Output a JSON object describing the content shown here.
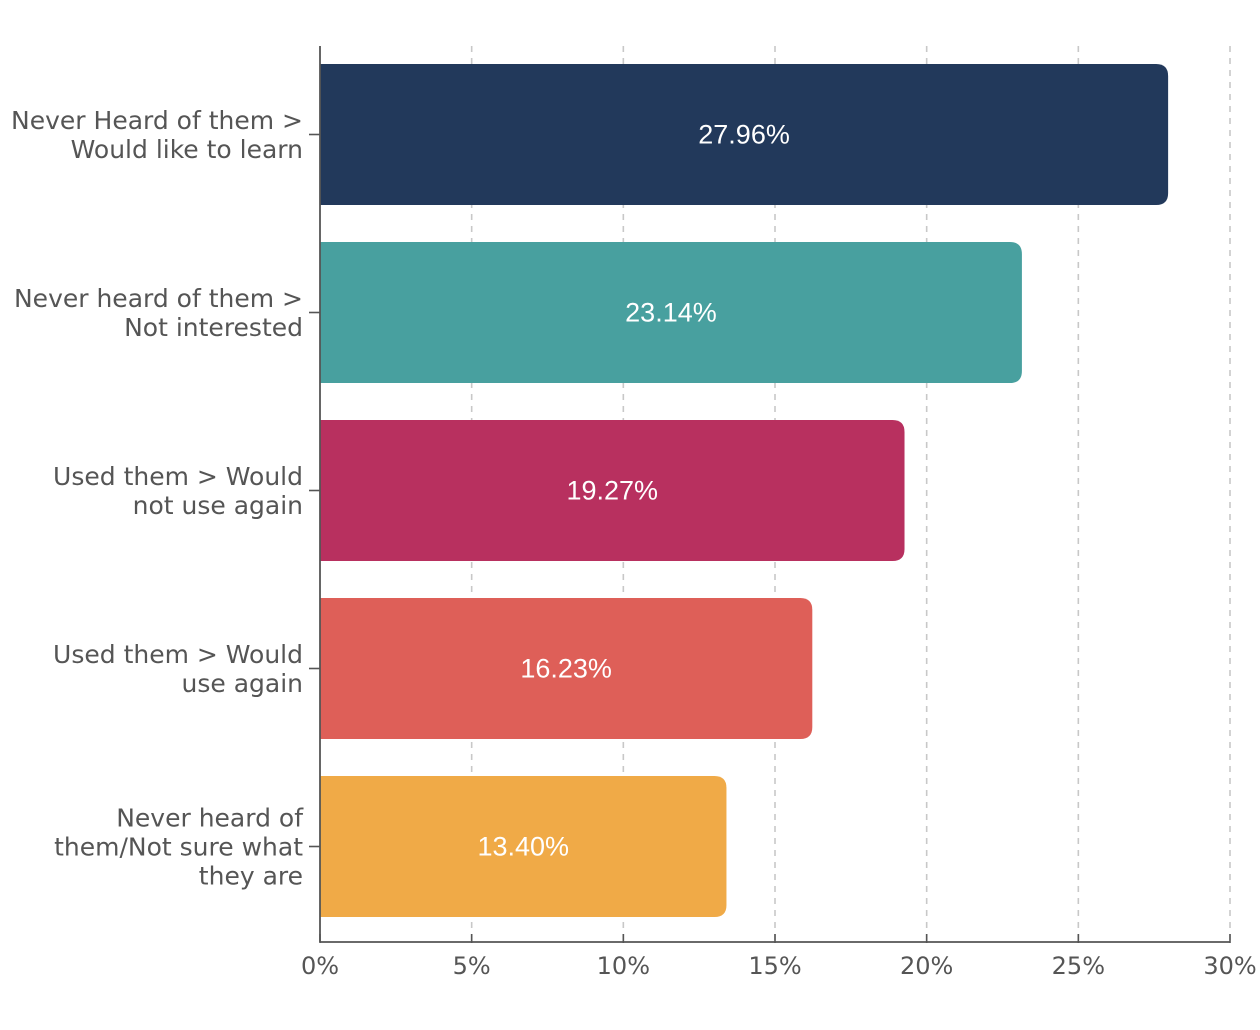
{
  "chart_data": {
    "type": "bar",
    "orientation": "horizontal",
    "categories": [
      [
        "Never Heard of them >",
        "Would like to learn"
      ],
      [
        "Never heard of them >",
        "Not interested"
      ],
      [
        "Used them > Would",
        "not use again"
      ],
      [
        "Used them > Would",
        "use again"
      ],
      [
        "Never heard of",
        "them/Not sure what",
        "they are"
      ]
    ],
    "values": [
      27.96,
      23.14,
      19.27,
      16.23,
      13.4
    ],
    "value_labels": [
      "27.96%",
      "23.14%",
      "19.27%",
      "16.23%",
      "13.40%"
    ],
    "colors": [
      "#22395b",
      "#48a09f",
      "#b8305f",
      "#de5f58",
      "#f0aa47"
    ],
    "xlim": [
      0,
      30
    ],
    "x_ticks": [
      0,
      5,
      10,
      15,
      20,
      25,
      30
    ],
    "x_tick_labels": [
      "0%",
      "5%",
      "10%",
      "15%",
      "20%",
      "25%",
      "30%"
    ],
    "title": "",
    "xlabel": "",
    "ylabel": "",
    "grid": "vertical dashed",
    "legend": "none"
  }
}
